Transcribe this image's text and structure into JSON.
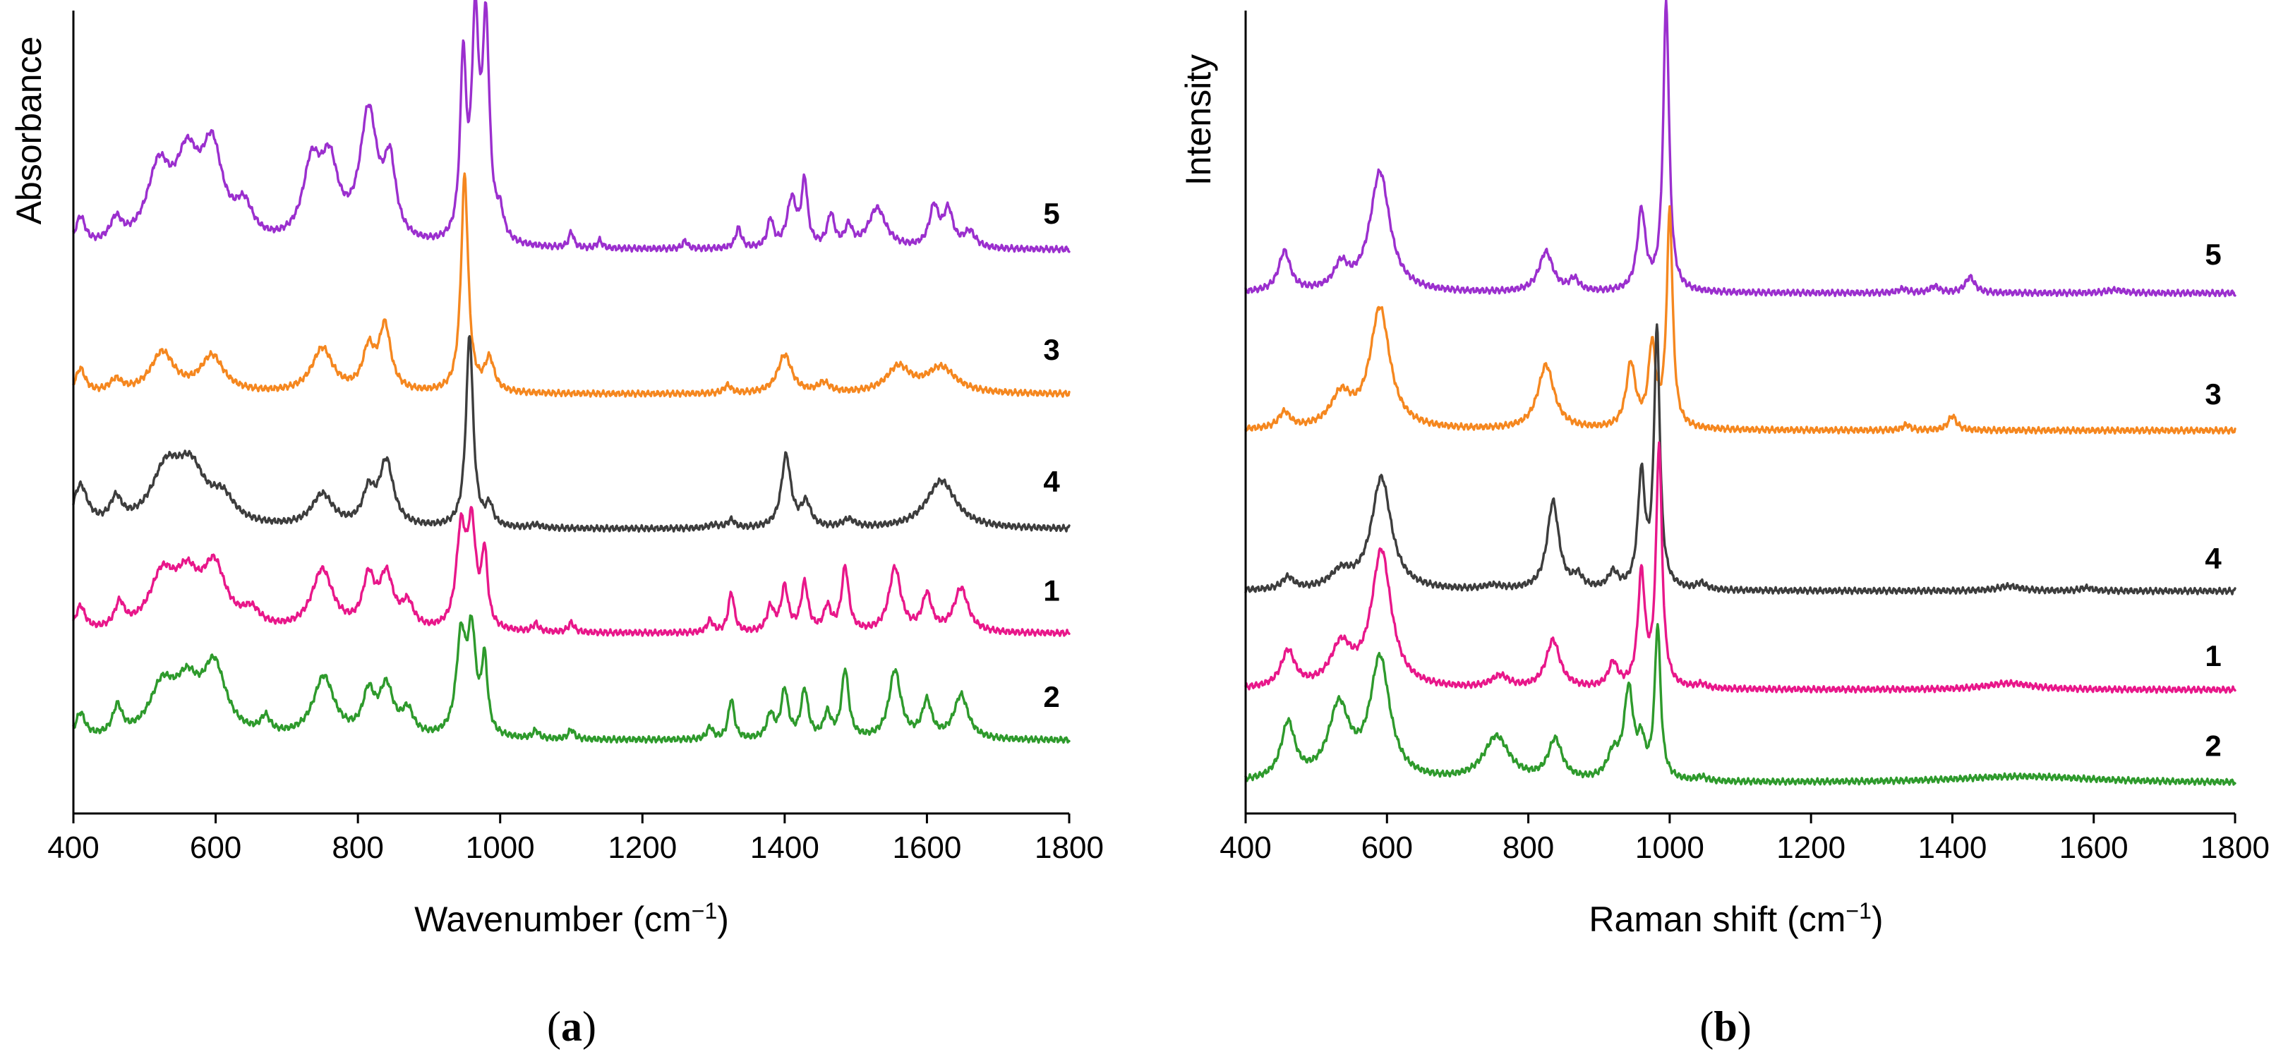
{
  "chart_data": [
    {
      "id": "a",
      "type": "line",
      "panel_label": "a",
      "xlabel": "Wavenumber",
      "xlabel_unit": "(cm",
      "ylabel": "Absorbance",
      "xlim": [
        400,
        1800
      ],
      "ylim": [
        0,
        1
      ],
      "xticks": [
        "400",
        "600",
        "800",
        "1000",
        "1200",
        "1400",
        "1600",
        "1800"
      ],
      "grid": false,
      "series": [
        {
          "name": "5",
          "color": "#9b2fce",
          "baseline": 0.702,
          "label_y": 0.748,
          "peaks": [
            [
              410,
              0.035,
              8
            ],
            [
              460,
              0.028,
              10
            ],
            [
              520,
              0.09,
              20
            ],
            [
              560,
              0.095,
              20
            ],
            [
              595,
              0.11,
              18
            ],
            [
              640,
              0.04,
              15
            ],
            [
              735,
              0.09,
              15
            ],
            [
              760,
              0.09,
              15
            ],
            [
              815,
              0.16,
              15
            ],
            [
              845,
              0.09,
              10
            ],
            [
              948,
              0.22,
              5
            ],
            [
              965,
              0.26,
              6
            ],
            [
              980,
              0.26,
              6
            ],
            [
              1000,
              0.03,
              6
            ],
            [
              1100,
              0.02,
              4
            ],
            [
              1140,
              0.01,
              4
            ],
            [
              1260,
              0.01,
              4
            ],
            [
              1335,
              0.025,
              5
            ],
            [
              1380,
              0.035,
              5
            ],
            [
              1410,
              0.06,
              8
            ],
            [
              1428,
              0.08,
              5
            ],
            [
              1465,
              0.04,
              6
            ],
            [
              1490,
              0.025,
              6
            ],
            [
              1530,
              0.05,
              15
            ],
            [
              1610,
              0.05,
              8
            ],
            [
              1630,
              0.045,
              8
            ],
            [
              1660,
              0.02,
              10
            ]
          ]
        },
        {
          "name": "3",
          "color": "#f5871f",
          "baseline": 0.522,
          "label_y": 0.578,
          "peaks": [
            [
              410,
              0.03,
              8
            ],
            [
              460,
              0.015,
              10
            ],
            [
              525,
              0.05,
              20
            ],
            [
              595,
              0.045,
              20
            ],
            [
              750,
              0.055,
              18
            ],
            [
              815,
              0.05,
              10
            ],
            [
              838,
              0.08,
              10
            ],
            [
              950,
              0.27,
              6
            ],
            [
              985,
              0.04,
              8
            ],
            [
              1320,
              0.01,
              6
            ],
            [
              1400,
              0.048,
              12
            ],
            [
              1455,
              0.012,
              10
            ],
            [
              1560,
              0.032,
              20
            ],
            [
              1620,
              0.032,
              25
            ]
          ]
        },
        {
          "name": "4",
          "color": "#3d3d3d",
          "baseline": 0.354,
          "label_y": 0.414,
          "peaks": [
            [
              410,
              0.05,
              12
            ],
            [
              460,
              0.03,
              10
            ],
            [
              530,
              0.065,
              25
            ],
            [
              565,
              0.065,
              25
            ],
            [
              610,
              0.03,
              20
            ],
            [
              750,
              0.04,
              18
            ],
            [
              815,
              0.04,
              10
            ],
            [
              840,
              0.08,
              12
            ],
            [
              957,
              0.24,
              6
            ],
            [
              985,
              0.025,
              6
            ],
            [
              1050,
              0.004,
              8
            ],
            [
              1300,
              0.004,
              10
            ],
            [
              1325,
              0.01,
              6
            ],
            [
              1402,
              0.09,
              8
            ],
            [
              1430,
              0.03,
              8
            ],
            [
              1490,
              0.01,
              10
            ],
            [
              1620,
              0.06,
              25
            ]
          ]
        },
        {
          "name": "1",
          "color": "#e8178a",
          "baseline": 0.224,
          "label_y": 0.278,
          "peaks": [
            [
              410,
              0.03,
              8
            ],
            [
              465,
              0.03,
              8
            ],
            [
              525,
              0.065,
              22
            ],
            [
              560,
              0.055,
              20
            ],
            [
              598,
              0.075,
              20
            ],
            [
              650,
              0.02,
              15
            ],
            [
              750,
              0.075,
              18
            ],
            [
              815,
              0.06,
              10
            ],
            [
              840,
              0.065,
              12
            ],
            [
              870,
              0.03,
              10
            ],
            [
              945,
              0.12,
              8
            ],
            [
              960,
              0.12,
              7
            ],
            [
              978,
              0.09,
              5
            ],
            [
              1050,
              0.01,
              5
            ],
            [
              1100,
              0.012,
              5
            ],
            [
              1295,
              0.015,
              5
            ],
            [
              1325,
              0.05,
              5
            ],
            [
              1380,
              0.03,
              6
            ],
            [
              1400,
              0.055,
              6
            ],
            [
              1428,
              0.06,
              6
            ],
            [
              1460,
              0.03,
              6
            ],
            [
              1485,
              0.08,
              6
            ],
            [
              1555,
              0.08,
              10
            ],
            [
              1600,
              0.045,
              8
            ],
            [
              1648,
              0.055,
              12
            ]
          ]
        },
        {
          "name": "2",
          "color": "#2e9a2c",
          "baseline": 0.091,
          "label_y": 0.146,
          "peaks": [
            [
              410,
              0.03,
              8
            ],
            [
              462,
              0.035,
              8
            ],
            [
              525,
              0.06,
              22
            ],
            [
              560,
              0.055,
              20
            ],
            [
              598,
              0.085,
              20
            ],
            [
              670,
              0.02,
              8
            ],
            [
              752,
              0.075,
              18
            ],
            [
              815,
              0.05,
              10
            ],
            [
              840,
              0.06,
              12
            ],
            [
              870,
              0.03,
              10
            ],
            [
              945,
              0.12,
              8
            ],
            [
              960,
              0.12,
              7
            ],
            [
              978,
              0.09,
              5
            ],
            [
              1050,
              0.01,
              5
            ],
            [
              1100,
              0.012,
              5
            ],
            [
              1295,
              0.015,
              5
            ],
            [
              1325,
              0.05,
              5
            ],
            [
              1380,
              0.03,
              6
            ],
            [
              1400,
              0.06,
              6
            ],
            [
              1428,
              0.06,
              6
            ],
            [
              1460,
              0.03,
              6
            ],
            [
              1485,
              0.085,
              6
            ],
            [
              1555,
              0.085,
              10
            ],
            [
              1600,
              0.045,
              8
            ],
            [
              1648,
              0.055,
              12
            ]
          ]
        }
      ]
    },
    {
      "id": "b",
      "type": "line",
      "panel_label": "b",
      "xlabel": "Raman shift",
      "xlabel_unit": "(cm",
      "ylabel": "Intensity",
      "xlim": [
        400,
        1800
      ],
      "ylim": [
        0,
        1
      ],
      "xticks": [
        "400",
        "600",
        "800",
        "1000",
        "1200",
        "1400",
        "1600",
        "1800"
      ],
      "grid": false,
      "series": [
        {
          "name": "5",
          "color": "#9b2fce",
          "baseline": 0.648,
          "label_y": 0.697,
          "peaks": [
            [
              455,
              0.05,
              10
            ],
            [
              535,
              0.03,
              12
            ],
            [
              590,
              0.15,
              17
            ],
            [
              825,
              0.05,
              12
            ],
            [
              865,
              0.015,
              8
            ],
            [
              960,
              0.1,
              7
            ],
            [
              995,
              0.36,
              5
            ],
            [
              1330,
              0.005,
              8
            ],
            [
              1375,
              0.008,
              8
            ],
            [
              1425,
              0.02,
              8
            ],
            [
              1630,
              0.004,
              15
            ]
          ]
        },
        {
          "name": "3",
          "color": "#f5871f",
          "baseline": 0.477,
          "label_y": 0.523,
          "peaks": [
            [
              455,
              0.02,
              10
            ],
            [
              535,
              0.04,
              18
            ],
            [
              590,
              0.15,
              17
            ],
            [
              825,
              0.08,
              14
            ],
            [
              945,
              0.08,
              8
            ],
            [
              975,
              0.1,
              6
            ],
            [
              1000,
              0.27,
              5
            ],
            [
              1335,
              0.007,
              6
            ],
            [
              1400,
              0.018,
              7
            ]
          ]
        },
        {
          "name": "4",
          "color": "#3d3d3d",
          "baseline": 0.277,
          "label_y": 0.318,
          "peaks": [
            [
              460,
              0.015,
              10
            ],
            [
              535,
              0.02,
              18
            ],
            [
              592,
              0.14,
              17
            ],
            [
              750,
              0.005,
              15
            ],
            [
              835,
              0.11,
              10
            ],
            [
              870,
              0.015,
              8
            ],
            [
              920,
              0.02,
              8
            ],
            [
              960,
              0.14,
              6
            ],
            [
              982,
              0.32,
              5
            ],
            [
              1045,
              0.008,
              8
            ],
            [
              1480,
              0.006,
              20
            ],
            [
              1590,
              0.004,
              10
            ]
          ]
        },
        {
          "name": "1",
          "color": "#e8178a",
          "baseline": 0.154,
          "label_y": 0.197,
          "peaks": [
            [
              460,
              0.045,
              12
            ],
            [
              535,
              0.05,
              18
            ],
            [
              592,
              0.17,
              17
            ],
            [
              760,
              0.015,
              15
            ],
            [
              835,
              0.06,
              12
            ],
            [
              920,
              0.03,
              8
            ],
            [
              960,
              0.14,
              6
            ],
            [
              985,
              0.3,
              5
            ],
            [
              1045,
              0.005,
              8
            ],
            [
              1480,
              0.008,
              40
            ]
          ]
        },
        {
          "name": "2",
          "color": "#2e9a2c",
          "baseline": 0.038,
          "label_y": 0.085,
          "peaks": [
            [
              460,
              0.07,
              12
            ],
            [
              532,
              0.09,
              18
            ],
            [
              590,
              0.15,
              17
            ],
            [
              755,
              0.055,
              22
            ],
            [
              838,
              0.05,
              12
            ],
            [
              920,
              0.03,
              10
            ],
            [
              942,
              0.11,
              8
            ],
            [
              960,
              0.04,
              6
            ],
            [
              983,
              0.19,
              5
            ],
            [
              1045,
              0.005,
              8
            ],
            [
              1500,
              0.008,
              120
            ]
          ]
        }
      ]
    }
  ]
}
